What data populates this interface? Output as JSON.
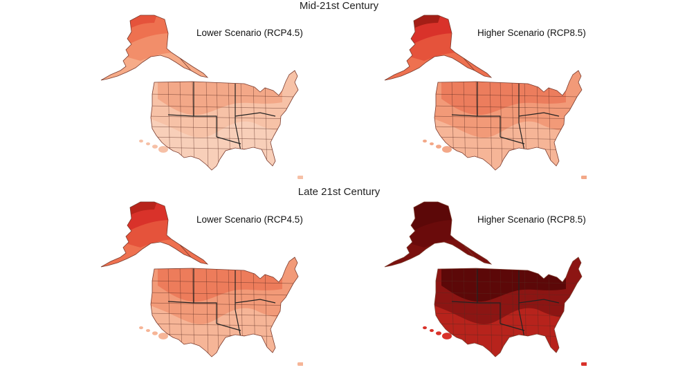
{
  "sections": [
    {
      "title": "Mid-21st Century",
      "panels": [
        {
          "label": "Lower Scenario (RCP4.5)",
          "colors": {
            "alaska": [
              "#e5533b",
              "#ee7150",
              "#f28e6a",
              "#f6ab88"
            ],
            "conus": [
              "#f3a888",
              "#f7c2a7",
              "#f8cfb9"
            ],
            "islands": "#f6c0a6"
          }
        },
        {
          "label": "Higher Scenario (RCP8.5)",
          "colors": {
            "alaska": [
              "#a41e16",
              "#d9322a",
              "#e5533b",
              "#ee7150"
            ],
            "conus": [
              "#ec7d5d",
              "#f29a78",
              "#f6b597"
            ],
            "islands": "#f3a888"
          }
        }
      ]
    },
    {
      "title": "Late 21st Century",
      "panels": [
        {
          "label": "Lower Scenario (RCP4.5)",
          "colors": {
            "alaska": [
              "#b8241b",
              "#d9322a",
              "#e5533b",
              "#ee7150"
            ],
            "conus": [
              "#ed7c5b",
              "#f29a78",
              "#f6b597"
            ],
            "islands": "#f6b597"
          }
        },
        {
          "label": "Higher Scenario (RCP8.5)",
          "colors": {
            "alaska": [
              "#5c0808",
              "#5c0808",
              "#6a0b0b",
              "#7a100e"
            ],
            "conus": [
              "#5c0808",
              "#8c1513",
              "#b7231c"
            ],
            "islands": "#d9322a"
          }
        }
      ]
    }
  ]
}
